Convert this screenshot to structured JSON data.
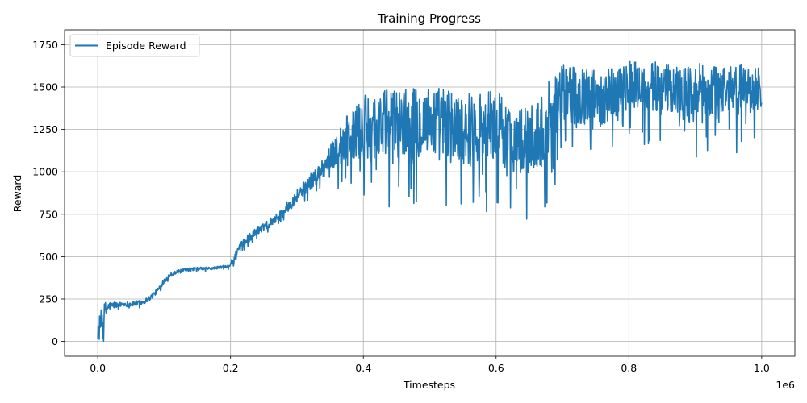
{
  "chart_data": {
    "type": "line",
    "title": "Training Progress",
    "xlabel": "Timesteps",
    "ylabel": "Reward",
    "x_offset_label": "1e6",
    "xlim": [
      -0.05,
      1.05
    ],
    "ylim": [
      -87.5,
      1837.5
    ],
    "grid": true,
    "legend_position": "top-left",
    "x_ticks": [
      0.0,
      0.2,
      0.4,
      0.6,
      0.8,
      1.0
    ],
    "x_tick_labels": [
      "0.0",
      "0.2",
      "0.4",
      "0.6",
      "0.8",
      "1.0"
    ],
    "y_ticks": [
      0,
      250,
      500,
      750,
      1000,
      1250,
      1500,
      1750
    ],
    "y_tick_labels": [
      "0",
      "250",
      "500",
      "750",
      "1000",
      "1250",
      "1500",
      "1750"
    ],
    "series": [
      {
        "name": "Episode Reward",
        "color": "#1f77b4",
        "x": [
          0.0,
          0.003,
          0.006,
          0.009,
          0.012,
          0.015,
          0.018,
          0.021,
          0.025,
          0.03,
          0.04,
          0.05,
          0.06,
          0.07,
          0.08,
          0.09,
          0.1,
          0.11,
          0.12,
          0.13,
          0.14,
          0.15,
          0.16,
          0.17,
          0.18,
          0.19,
          0.2,
          0.21,
          0.22,
          0.23,
          0.24,
          0.25,
          0.26,
          0.27,
          0.28,
          0.29,
          0.3,
          0.31,
          0.32,
          0.33,
          0.34,
          0.35,
          0.36,
          0.37,
          0.38,
          0.39,
          0.4,
          0.41,
          0.42,
          0.43,
          0.44,
          0.45,
          0.46,
          0.47,
          0.48,
          0.49,
          0.5,
          0.51,
          0.52,
          0.53,
          0.54,
          0.55,
          0.56,
          0.57,
          0.58,
          0.59,
          0.6,
          0.61,
          0.62,
          0.63,
          0.64,
          0.65,
          0.66,
          0.67,
          0.68,
          0.69,
          0.7,
          0.71,
          0.72,
          0.73,
          0.74,
          0.75,
          0.76,
          0.77,
          0.78,
          0.79,
          0.8,
          0.81,
          0.82,
          0.83,
          0.84,
          0.85,
          0.86,
          0.87,
          0.88,
          0.89,
          0.9,
          0.91,
          0.92,
          0.93,
          0.94,
          0.95,
          0.96,
          0.97,
          0.98,
          0.99,
          1.0
        ],
        "y": [
          30,
          90,
          120,
          150,
          180,
          200,
          210,
          210,
          215,
          215,
          220,
          220,
          225,
          235,
          260,
          300,
          360,
          395,
          410,
          420,
          425,
          430,
          430,
          430,
          435,
          440,
          455,
          520,
          580,
          620,
          650,
          680,
          705,
          730,
          770,
          810,
          860,
          900,
          940,
          980,
          1030,
          1080,
          1130,
          1180,
          1210,
          1230,
          1250,
          1260,
          1270,
          1280,
          1290,
          1290,
          1290,
          1280,
          1290,
          1300,
          1300,
          1290,
          1280,
          1270,
          1260,
          1260,
          1250,
          1260,
          1270,
          1280,
          1270,
          1230,
          1200,
          1190,
          1180,
          1180,
          1200,
          1250,
          1330,
          1400,
          1450,
          1470,
          1460,
          1450,
          1440,
          1430,
          1440,
          1460,
          1480,
          1490,
          1500,
          1510,
          1510,
          1500,
          1500,
          1490,
          1480,
          1480,
          1470,
          1470,
          1460,
          1460,
          1470,
          1470,
          1480,
          1480,
          1480,
          1490,
          1490,
          1490,
          1490
        ],
        "noise": [
          60,
          70,
          80,
          70,
          60,
          30,
          25,
          20,
          20,
          15,
          15,
          15,
          15,
          15,
          15,
          15,
          15,
          12,
          10,
          10,
          10,
          8,
          8,
          8,
          8,
          10,
          15,
          30,
          30,
          25,
          25,
          25,
          25,
          25,
          30,
          35,
          40,
          45,
          45,
          50,
          60,
          80,
          100,
          120,
          150,
          180,
          200,
          200,
          200,
          210,
          210,
          210,
          210,
          210,
          210,
          210,
          210,
          220,
          220,
          220,
          220,
          220,
          220,
          220,
          220,
          220,
          220,
          220,
          200,
          200,
          200,
          200,
          210,
          220,
          220,
          200,
          180,
          170,
          170,
          170,
          170,
          170,
          170,
          170,
          160,
          150,
          150,
          150,
          150,
          150,
          150,
          150,
          150,
          150,
          160,
          170,
          180,
          180,
          170,
          170,
          160,
          160,
          160,
          150,
          140,
          140,
          140
        ]
      }
    ]
  }
}
